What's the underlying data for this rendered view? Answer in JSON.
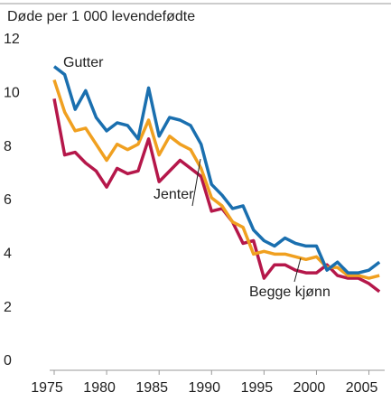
{
  "chart_data": {
    "type": "line",
    "title": "Døde per 1 000 levendefødte",
    "x": [
      1975,
      1976,
      1977,
      1978,
      1979,
      1980,
      1981,
      1982,
      1983,
      1984,
      1985,
      1986,
      1987,
      1988,
      1989,
      1990,
      1991,
      1992,
      1993,
      1994,
      1995,
      1996,
      1997,
      1998,
      1999,
      2000,
      2001,
      2002,
      2003,
      2004,
      2005,
      2006
    ],
    "series": [
      {
        "name": "Gutter",
        "color": "#1a6faf",
        "values": [
          11.0,
          10.7,
          9.4,
          10.1,
          9.1,
          8.6,
          8.9,
          8.8,
          8.3,
          10.2,
          8.4,
          9.1,
          9.0,
          8.8,
          8.1,
          6.6,
          6.2,
          5.7,
          5.8,
          4.9,
          4.5,
          4.3,
          4.6,
          4.4,
          4.3,
          4.3,
          3.4,
          3.7,
          3.3,
          3.3,
          3.4,
          3.7
        ]
      },
      {
        "name": "Begge kjønn",
        "color": "#f0a020",
        "values": [
          10.5,
          9.3,
          8.6,
          8.7,
          8.1,
          7.5,
          8.1,
          7.9,
          8.1,
          9.0,
          7.7,
          8.4,
          8.1,
          7.9,
          7.2,
          6.1,
          5.8,
          5.2,
          5.0,
          4.0,
          4.1,
          4.0,
          4.0,
          3.9,
          3.8,
          3.9,
          3.5,
          3.5,
          3.2,
          3.2,
          3.1,
          3.2
        ]
      },
      {
        "name": "Jenter",
        "color": "#b5174a",
        "values": [
          9.8,
          7.7,
          7.8,
          7.4,
          7.1,
          6.5,
          7.2,
          7.0,
          7.1,
          8.3,
          6.7,
          7.1,
          7.5,
          7.2,
          6.9,
          5.6,
          5.7,
          5.2,
          4.4,
          4.5,
          3.1,
          3.6,
          3.6,
          3.4,
          3.3,
          3.3,
          3.6,
          3.2,
          3.1,
          3.1,
          2.9,
          2.6
        ]
      }
    ],
    "xlim": [
      1975,
      2006.5
    ],
    "xticks": [
      1975,
      1980,
      1985,
      1990,
      1995,
      2000,
      2005
    ],
    "ylim": [
      0,
      12
    ],
    "yticks": [
      0,
      2,
      4,
      6,
      8,
      10,
      12
    ]
  }
}
